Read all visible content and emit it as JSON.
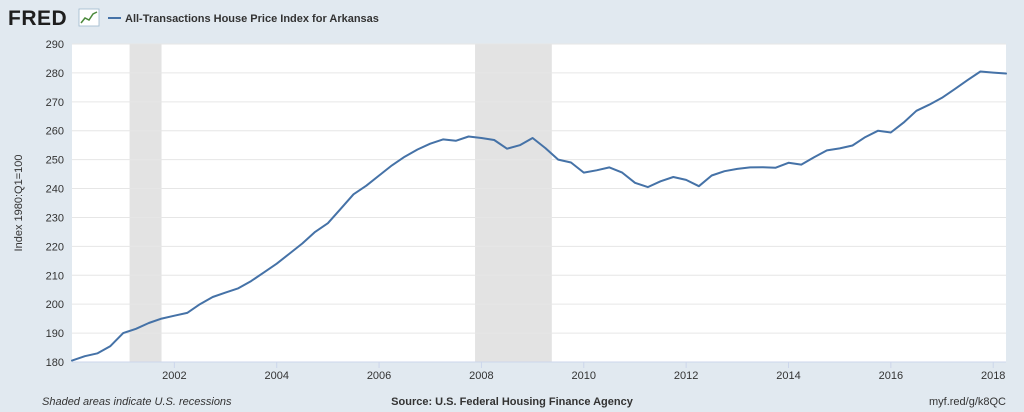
{
  "header": {
    "logo_text": "FRED",
    "logo_icon": "line-chart-icon",
    "series_title": "All-Transactions House Price Index for Arkansas"
  },
  "footer": {
    "recession_note": "Shaded areas indicate U.S. recessions",
    "source": "Source: U.S. Federal Housing Finance Agency",
    "short_url": "myf.red/g/k8QC"
  },
  "colors": {
    "background": "#e1e9f0",
    "plot_background": "#ffffff",
    "series_line": "#4572a7",
    "recession_shade": "#e3e3e3",
    "grid": "#e6e6e6"
  },
  "chart_data": {
    "type": "line",
    "title": "All-Transactions House Price Index for Arkansas",
    "xlabel": "",
    "ylabel": "Index 1980:Q1=100",
    "xlim": [
      2000.0,
      2018.25
    ],
    "ylim": [
      180,
      290
    ],
    "yticks": [
      180,
      190,
      200,
      210,
      220,
      230,
      240,
      250,
      260,
      270,
      280,
      290
    ],
    "xticks": [
      2002,
      2004,
      2006,
      2008,
      2010,
      2012,
      2014,
      2016,
      2018
    ],
    "grid": "horizontal",
    "legend": "top-left",
    "recessions": [
      {
        "start": 2001.125,
        "end": 2001.75
      },
      {
        "start": 2007.875,
        "end": 2009.375
      }
    ],
    "series": [
      {
        "name": "All-Transactions House Price Index for Arkansas",
        "x": [
          2000.0,
          2000.25,
          2000.5,
          2000.75,
          2001.0,
          2001.25,
          2001.5,
          2001.75,
          2002.0,
          2002.25,
          2002.5,
          2002.75,
          2003.0,
          2003.25,
          2003.5,
          2003.75,
          2004.0,
          2004.25,
          2004.5,
          2004.75,
          2005.0,
          2005.25,
          2005.5,
          2005.75,
          2006.0,
          2006.25,
          2006.5,
          2006.75,
          2007.0,
          2007.25,
          2007.5,
          2007.75,
          2008.0,
          2008.25,
          2008.5,
          2008.75,
          2009.0,
          2009.25,
          2009.5,
          2009.75,
          2010.0,
          2010.25,
          2010.5,
          2010.75,
          2011.0,
          2011.25,
          2011.5,
          2011.75,
          2012.0,
          2012.25,
          2012.5,
          2012.75,
          2013.0,
          2013.25,
          2013.5,
          2013.75,
          2014.0,
          2014.25,
          2014.5,
          2014.75,
          2015.0,
          2015.25,
          2015.5,
          2015.75,
          2016.0,
          2016.25,
          2016.5,
          2016.75,
          2017.0,
          2017.25,
          2017.5,
          2017.75,
          2018.0,
          2018.25
        ],
        "values": [
          180.5,
          182.0,
          183.0,
          185.5,
          190.0,
          191.5,
          193.5,
          195.0,
          196.0,
          197.0,
          200.0,
          202.5,
          204.0,
          205.5,
          208.0,
          211.0,
          214.0,
          217.5,
          221.0,
          225.0,
          228.0,
          233.0,
          238.0,
          241.0,
          244.5,
          248.0,
          251.0,
          253.5,
          255.5,
          257.0,
          256.5,
          258.0,
          257.5,
          256.8,
          253.8,
          255.0,
          257.5,
          254.0,
          250.0,
          249.0,
          245.5,
          246.3,
          247.3,
          245.5,
          242.0,
          240.5,
          242.5,
          244.0,
          243.0,
          240.8,
          244.5,
          246.0,
          246.8,
          247.3,
          247.4,
          247.2,
          248.9,
          248.3,
          250.8,
          253.2,
          253.9,
          254.9,
          257.8,
          260.0,
          259.4,
          262.8,
          266.9,
          269.0,
          271.4,
          274.4,
          277.5,
          280.5,
          280.1,
          279.8
        ]
      }
    ]
  }
}
